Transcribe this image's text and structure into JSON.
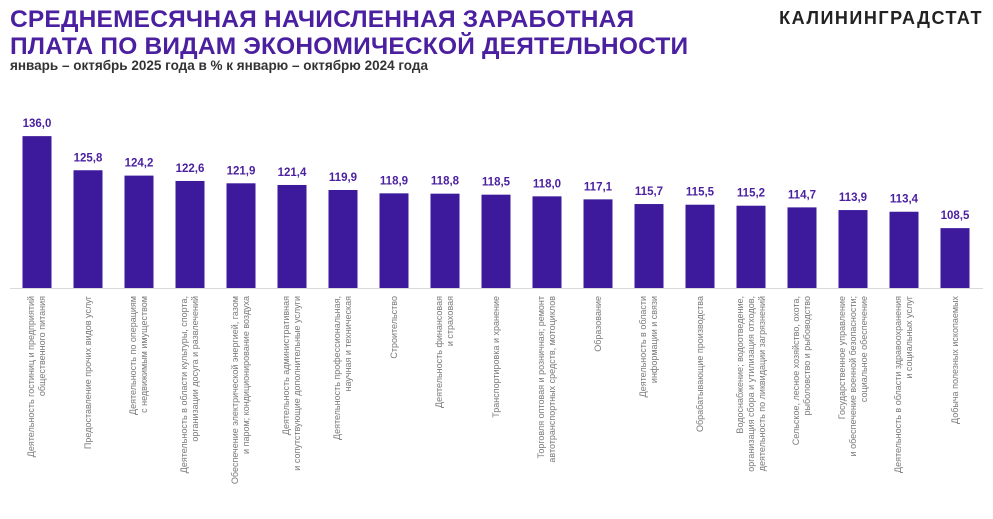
{
  "header": {
    "title_line1": "СРЕДНЕМЕСЯЧНАЯ НАЧИСЛЕННАЯ ЗАРАБОТНАЯ",
    "title_line2": "ПЛАТА ПО ВИДАМ ЭКОНОМИЧЕСКОЙ ДЕЯТЕЛЬНОСТИ",
    "subtitle": "январь – октябрь 2025 года в % к январю – октябрю 2024 года",
    "logo": "КАЛИНИНГРАДСТАТ"
  },
  "colors": {
    "bar": "#3d1a9c",
    "title": "#4a1fa0",
    "axis": "#d9d9d9",
    "label": "#7a7a7a"
  },
  "chart_data": {
    "type": "bar",
    "title": "Среднемесячная начисленная заработная плата по видам экономической деятельности",
    "xlabel": "",
    "ylabel": "",
    "ylim": [
      90.6,
      140
    ],
    "grid": false,
    "categories": [
      "Деятельность гостиниц и предприятий\nобщественного питания",
      "Предоставление прочих видов услуг",
      "Деятельность по операциям\nс недвижимым имуществом",
      "Деятельность в области культуры, спорта,\nорганизации досуга и развлечений",
      "Обеспечение электрической энергией, газом\nи паром; кондиционирование воздуха",
      "Деятельность административная\nи сопутствующие дополнительные услуги",
      "Деятельность профессиональная,\nнаучная и техническая",
      "Строительство",
      "Деятельность финансовая\nи страховая",
      "Транспортировка и хранение",
      "Торговля оптовая и розничная; ремонт\nавтотранспортных средств, мотоциклов",
      "Образование",
      "Деятельность в области\nинформации и связи",
      "Обрабатывающие производства",
      "Водоснабжение; водоотведение,\nорганизация сбора и утилизация отходов,\nдеятельность по ликвидации загрязнений",
      "Сельское, лесное хозяйство, охота,\nрыболовство и рыбоводство",
      "Государственное управление\nи обеспечение военной безопасности;\nсоциальное обеспечение",
      "Деятельность в области здравоохранения\nи социальных услуг",
      "Добыча полезных ископаемых"
    ],
    "values": [
      136.0,
      125.8,
      124.2,
      122.6,
      121.9,
      121.4,
      119.9,
      118.9,
      118.8,
      118.5,
      118.0,
      117.1,
      115.7,
      115.5,
      115.2,
      114.7,
      113.9,
      113.4,
      108.5
    ],
    "value_labels": [
      "136,0",
      "125,8",
      "124,2",
      "122,6",
      "121,9",
      "121,4",
      "119,9",
      "118,9",
      "118,8",
      "118,5",
      "118,0",
      "117,1",
      "115,7",
      "115,5",
      "115,2",
      "114,7",
      "113,9",
      "113,4",
      "108,5"
    ]
  }
}
